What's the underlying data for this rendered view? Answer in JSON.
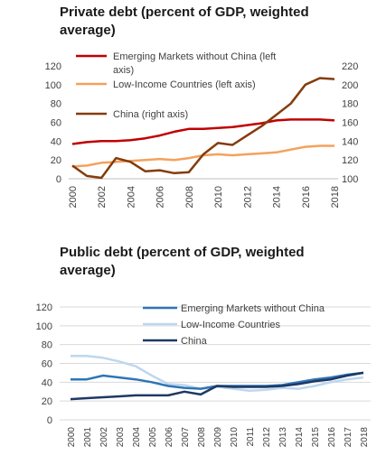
{
  "chart_data": [
    {
      "type": "line",
      "title": "Private debt (percent of GDP, weighted average)",
      "x": [
        "2000",
        "2001",
        "2002",
        "2003",
        "2004",
        "2005",
        "2006",
        "2007",
        "2008",
        "2009",
        "2010",
        "2011",
        "2012",
        "2013",
        "2014",
        "2015",
        "2016",
        "2017",
        "2018"
      ],
      "x_tick_labels": [
        "2000",
        "2002",
        "2004",
        "2006",
        "2008",
        "2010",
        "2012",
        "2014",
        "2016",
        "2018"
      ],
      "ylim_left": [
        0,
        120
      ],
      "y_ticks_left": [
        "0",
        "20",
        "40",
        "60",
        "80",
        "100",
        "120"
      ],
      "ylim_right": [
        100,
        220
      ],
      "y_ticks_right": [
        "100",
        "120",
        "140",
        "160",
        "180",
        "200",
        "220"
      ],
      "grid": false,
      "legend_position": "top",
      "series": [
        {
          "name": "Emerging Markets without China (left axis)",
          "axis": "left",
          "color": "#c00000",
          "values": [
            37,
            39,
            40,
            40,
            41,
            43,
            46,
            50,
            53,
            53,
            54,
            55,
            57,
            59,
            62,
            63,
            63,
            63,
            62
          ]
        },
        {
          "name": "Low-Income Countries (left axis)",
          "axis": "left",
          "color": "#f4a15d",
          "values": [
            13,
            14,
            17,
            18,
            19,
            20,
            21,
            20,
            22,
            25,
            26,
            25,
            26,
            27,
            28,
            31,
            34,
            35,
            35
          ]
        },
        {
          "name": "China (right axis)",
          "axis": "right",
          "color": "#843c0c",
          "values": [
            114,
            103,
            101,
            122,
            118,
            108,
            109,
            106,
            107,
            126,
            138,
            136,
            146,
            156,
            168,
            180,
            200,
            207,
            206
          ]
        }
      ]
    },
    {
      "type": "line",
      "title": "Public debt (percent of GDP, weighted average)",
      "x": [
        "2000",
        "2001",
        "2002",
        "2003",
        "2004",
        "2005",
        "2006",
        "2007",
        "2008",
        "2009",
        "2010",
        "2011",
        "2012",
        "2013",
        "2014",
        "2015",
        "2016",
        "2017",
        "2018"
      ],
      "x_tick_labels": [
        "2000",
        "2001",
        "2002",
        "2003",
        "2004",
        "2005",
        "2006",
        "2007",
        "2008",
        "2009",
        "2010",
        "2011",
        "2012",
        "2013",
        "2014",
        "2015",
        "2016",
        "2017",
        "2018"
      ],
      "ylim": [
        0,
        120
      ],
      "y_ticks": [
        "0",
        "20",
        "40",
        "60",
        "80",
        "100",
        "120"
      ],
      "grid": true,
      "legend_position": "top-right",
      "series": [
        {
          "name": "Emerging Markets without China",
          "color": "#2e75b6",
          "values": [
            43,
            43,
            47,
            45,
            43,
            40,
            36,
            34,
            33,
            36,
            36,
            36,
            36,
            37,
            40,
            43,
            45,
            48,
            50
          ]
        },
        {
          "name": "Low-Income Countries",
          "color": "#bdd7ee",
          "values": [
            68,
            68,
            66,
            62,
            57,
            47,
            38,
            37,
            33,
            35,
            33,
            31,
            32,
            34,
            33,
            36,
            40,
            43,
            45
          ]
        },
        {
          "name": "China",
          "color": "#1f3864",
          "values": [
            22,
            23,
            24,
            25,
            26,
            26,
            26,
            30,
            27,
            36,
            35,
            35,
            35,
            36,
            38,
            41,
            43,
            47,
            50
          ]
        }
      ]
    }
  ]
}
